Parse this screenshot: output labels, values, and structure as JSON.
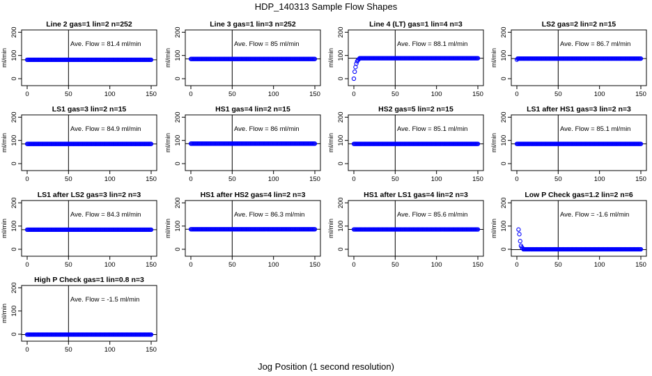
{
  "figure": {
    "title": "HDP_140313  Sample Flow Shapes",
    "xlabel": "Jog Position (1 second resolution)"
  },
  "colors": {
    "points": "#0000ff",
    "axes": "#000000"
  },
  "chart_data": [
    {
      "type": "scatter",
      "title": "Line 2 gas=1 lin=2 n=252",
      "annotation": "Ave. Flow =  81.4  ml/min",
      "ylabel": "ml/min",
      "xlim": [
        0,
        150
      ],
      "ylim": [
        -30,
        210
      ],
      "xticks": [
        0,
        50,
        100,
        150
      ],
      "yticks": [
        0,
        100,
        200
      ],
      "vline": 50,
      "hline": 81.4,
      "shape": "flat",
      "level": 81.4
    },
    {
      "type": "scatter",
      "title": "Line 3 gas=1 lin=3 n=252",
      "annotation": "Ave. Flow =  85  ml/min",
      "ylabel": "ml/min",
      "xlim": [
        0,
        150
      ],
      "ylim": [
        -30,
        210
      ],
      "xticks": [
        0,
        50,
        100,
        150
      ],
      "yticks": [
        0,
        100,
        200
      ],
      "vline": 50,
      "hline": 85,
      "shape": "flat",
      "level": 85
    },
    {
      "type": "scatter",
      "title": "Line 4 (LT) gas=1 lin=4 n=3",
      "annotation": "Ave. Flow =  88.1  ml/min",
      "ylabel": "ml/min",
      "xlim": [
        0,
        150
      ],
      "ylim": [
        -30,
        210
      ],
      "xticks": [
        0,
        50,
        100,
        150
      ],
      "yticks": [
        0,
        100,
        200
      ],
      "vline": 50,
      "hline": 88.1,
      "shape": "ramp",
      "level": 88.1,
      "start": [
        [
          0,
          0
        ],
        [
          1,
          30
        ],
        [
          2,
          50
        ],
        [
          3,
          65
        ],
        [
          4,
          75
        ],
        [
          5,
          80
        ],
        [
          6,
          84
        ]
      ]
    },
    {
      "type": "scatter",
      "title": "LS2 gas=2 lin=2 n=15",
      "annotation": "Ave. Flow =  86.7  ml/min",
      "ylabel": "ml/min",
      "xlim": [
        0,
        150
      ],
      "ylim": [
        -30,
        210
      ],
      "xticks": [
        0,
        50,
        100,
        150
      ],
      "yticks": [
        0,
        100,
        200
      ],
      "vline": 50,
      "hline": 86.7,
      "shape": "flat",
      "level": 86.7,
      "start": [
        [
          0,
          82
        ]
      ]
    },
    {
      "type": "scatter",
      "title": "LS1 gas=3 lin=2 n=15",
      "annotation": "Ave. Flow =  84.9  ml/min",
      "ylabel": "ml/min",
      "xlim": [
        0,
        150
      ],
      "ylim": [
        -30,
        210
      ],
      "xticks": [
        0,
        50,
        100,
        150
      ],
      "yticks": [
        0,
        100,
        200
      ],
      "vline": 50,
      "hline": 84.9,
      "shape": "flat",
      "level": 84.9
    },
    {
      "type": "scatter",
      "title": "HS1 gas=4 lin=2 n=15",
      "annotation": "Ave. Flow =  86  ml/min",
      "ylabel": "ml/min",
      "xlim": [
        0,
        150
      ],
      "ylim": [
        -30,
        210
      ],
      "xticks": [
        0,
        50,
        100,
        150
      ],
      "yticks": [
        0,
        100,
        200
      ],
      "vline": 50,
      "hline": 86,
      "shape": "flat",
      "level": 86
    },
    {
      "type": "scatter",
      "title": "HS2 gas=5 lin=2 n=15",
      "annotation": "Ave. Flow =  85.1  ml/min",
      "ylabel": "ml/min",
      "xlim": [
        0,
        150
      ],
      "ylim": [
        -30,
        210
      ],
      "xticks": [
        0,
        50,
        100,
        150
      ],
      "yticks": [
        0,
        100,
        200
      ],
      "vline": 50,
      "hline": 85.1,
      "shape": "flat",
      "level": 85.1
    },
    {
      "type": "scatter",
      "title": "LS1 after HS1 gas=3 lin=2 n=3",
      "annotation": "Ave. Flow =  85.1  ml/min",
      "ylabel": "ml/min",
      "xlim": [
        0,
        150
      ],
      "ylim": [
        -30,
        210
      ],
      "xticks": [
        0,
        50,
        100,
        150
      ],
      "yticks": [
        0,
        100,
        200
      ],
      "vline": 50,
      "hline": 85.1,
      "shape": "flat",
      "level": 85.1
    },
    {
      "type": "scatter",
      "title": "LS1 after LS2 gas=3 lin=2 n=3",
      "annotation": "Ave. Flow =  84.3  ml/min",
      "ylabel": "ml/min",
      "xlim": [
        0,
        150
      ],
      "ylim": [
        -30,
        210
      ],
      "xticks": [
        0,
        50,
        100,
        150
      ],
      "yticks": [
        0,
        100,
        200
      ],
      "vline": 50,
      "hline": 84.3,
      "shape": "flat",
      "level": 84.3
    },
    {
      "type": "scatter",
      "title": "HS1 after HS2 gas=4 lin=2 n=3",
      "annotation": "Ave. Flow =  86.3  ml/min",
      "ylabel": "ml/min",
      "xlim": [
        0,
        150
      ],
      "ylim": [
        -30,
        210
      ],
      "xticks": [
        0,
        50,
        100,
        150
      ],
      "yticks": [
        0,
        100,
        200
      ],
      "vline": 50,
      "hline": 86.3,
      "shape": "flat",
      "level": 86.3
    },
    {
      "type": "scatter",
      "title": "HS1 after LS1 gas=4 lin=2 n=3",
      "annotation": "Ave. Flow =  85.6  ml/min",
      "ylabel": "ml/min",
      "xlim": [
        0,
        150
      ],
      "ylim": [
        -30,
        210
      ],
      "xticks": [
        0,
        50,
        100,
        150
      ],
      "yticks": [
        0,
        100,
        200
      ],
      "vline": 50,
      "hline": 85.6,
      "shape": "flat",
      "level": 85.6
    },
    {
      "type": "scatter",
      "title": "Low P Check gas=1.2 lin=2 n=6",
      "annotation": "Ave. Flow =  -1.6  ml/min",
      "ylabel": "ml/min",
      "xlim": [
        0,
        150
      ],
      "ylim": [
        -30,
        210
      ],
      "xticks": [
        0,
        50,
        100,
        150
      ],
      "yticks": [
        0,
        100,
        200
      ],
      "vline": 50,
      "hline": -1.6,
      "shape": "decay",
      "level": 0,
      "start": [
        [
          2,
          85
        ],
        [
          3,
          65
        ],
        [
          4,
          35
        ],
        [
          5,
          15
        ],
        [
          6,
          8
        ],
        [
          7,
          4
        ]
      ]
    },
    {
      "type": "scatter",
      "title": "High P Check gas=1 lin=0.8 n=3",
      "annotation": "Ave. Flow =  -1.5  ml/min",
      "ylabel": "ml/min",
      "xlim": [
        0,
        150
      ],
      "ylim": [
        -30,
        210
      ],
      "xticks": [
        0,
        50,
        100,
        150
      ],
      "yticks": [
        0,
        100,
        200
      ],
      "vline": 50,
      "hline": -1.5,
      "shape": "flat",
      "level": -1.5
    }
  ]
}
